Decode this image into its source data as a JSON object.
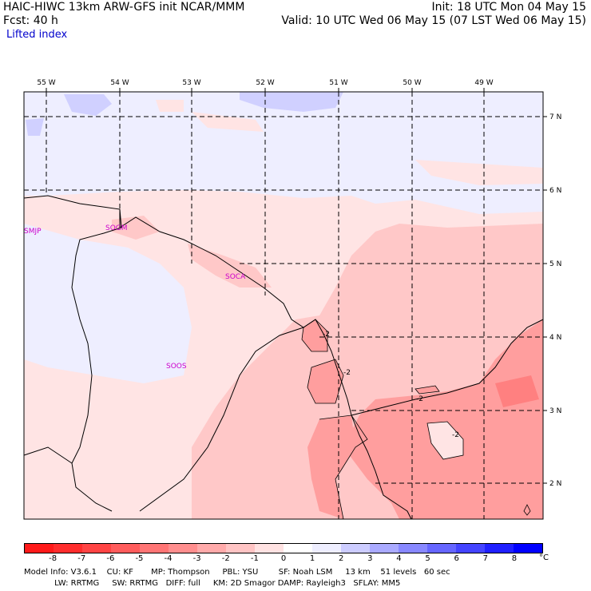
{
  "header": {
    "line1_left": "HAIC-HIWC 13km ARW-GFS init    NCAR/MMM",
    "line2_left": "Fcst:    40 h",
    "field_name": "Lifted index",
    "line1_right": "Init: 18 UTC Mon 04 May 15",
    "line2_right": "Valid: 10 UTC Wed 06 May 15 (07 LST Wed 06 May 15)"
  },
  "map": {
    "lon_labels": [
      "55 W",
      "54 W",
      "53 W",
      "52 W",
      "51 W",
      "50 W",
      "49 W"
    ],
    "lat_labels": [
      "7 N",
      "6 N",
      "5 N",
      "4 N",
      "3 N",
      "2 N"
    ],
    "stations": [
      "SMJP",
      "SOGM",
      "SOCA",
      "SOOS"
    ],
    "contour_labels": [
      "-2",
      "-2",
      "-2",
      "-2"
    ]
  },
  "legend": {
    "ticks": [
      "-8",
      "-7",
      "-6",
      "-5",
      "-4",
      "-3",
      "-2",
      "-1",
      "0",
      "1",
      "2",
      "3",
      "4",
      "5",
      "6",
      "7",
      "8"
    ],
    "unit": "°C",
    "colors": [
      "#ff1a1a",
      "#ff2d2d",
      "#ff4444",
      "#ff5c5c",
      "#ff7575",
      "#ff8e8e",
      "#ffaaaa",
      "#ffc4c4",
      "#ffe2e2",
      "#ffffff",
      "#eeeeff",
      "#ccccff",
      "#aaaaff",
      "#8888ff",
      "#6666ff",
      "#4444ff",
      "#2020ff",
      "#0000ff"
    ]
  },
  "footer": {
    "line1": "Model Info: V3.6.1    CU: KF       MP: Thompson     PBL: YSU        SF: Noah LSM     13 km    51 levels   60 sec",
    "line2": "            LW: RRTMG     SW: RRTMG   DIFF: full     KM: 2D Smagor DAMP: Rayleigh3   SFLAY: MM5"
  }
}
